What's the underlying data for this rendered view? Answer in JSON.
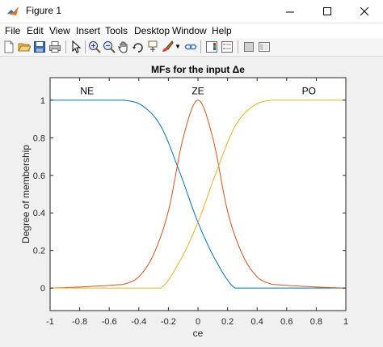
{
  "window": {
    "title": "Figure 1"
  },
  "menu": [
    "File",
    "Edit",
    "View",
    "Insert",
    "Tools",
    "Desktop",
    "Window",
    "Help"
  ],
  "toolbar": {
    "buttons": [
      "new-figure",
      "open-file",
      "save",
      "print",
      "edit-plot-arrow",
      "zoom-in",
      "zoom-out",
      "pan",
      "rotate-3d",
      "data-cursor",
      "brush",
      "link-plot",
      "insert-colorbar",
      "insert-legend",
      "hide-plot-tools",
      "show-plot-tools"
    ]
  },
  "chart_data": {
    "type": "line",
    "title": "MFs for the input Δe",
    "xlabel": "ce",
    "ylabel": "Degree of membership",
    "xlim": [
      -1,
      1
    ],
    "ylim": [
      -0.12,
      1.12
    ],
    "xticks": [
      "-1",
      "-0.8",
      "-0.6",
      "-0.4",
      "-0.2",
      "0",
      "0.2",
      "0.4",
      "0.6",
      "0.8",
      "1"
    ],
    "yticks": [
      "0",
      "0.2",
      "0.4",
      "0.6",
      "0.8",
      "1"
    ],
    "grid": false,
    "series": [
      {
        "name": "NE",
        "color": "#0072bd",
        "x": [
          -1,
          -0.5,
          -0.375,
          -0.25,
          -0.125,
          0,
          0.125,
          0.25,
          1
        ],
        "y": [
          1,
          1,
          0.97,
          0.86,
          0.62,
          0.35,
          0.14,
          0,
          0
        ]
      },
      {
        "name": "ZE",
        "color": "#d95319",
        "x": [
          -1,
          -0.5,
          -0.4,
          -0.3,
          -0.2,
          -0.1,
          0,
          0.1,
          0.2,
          0.3,
          0.4,
          0.5,
          1
        ],
        "y": [
          0,
          0.02,
          0.06,
          0.18,
          0.41,
          0.8,
          1,
          0.8,
          0.41,
          0.18,
          0.06,
          0.02,
          0
        ]
      },
      {
        "name": "PO",
        "color": "#edb120",
        "x": [
          -1,
          -0.25,
          -0.125,
          0,
          0.125,
          0.25,
          0.375,
          0.5,
          1
        ],
        "y": [
          0,
          0,
          0.14,
          0.35,
          0.62,
          0.86,
          0.97,
          1,
          1
        ]
      }
    ],
    "annotations": [
      {
        "text": "NE",
        "x": -0.75,
        "y": 1.05
      },
      {
        "text": "ZE",
        "x": 0,
        "y": 1.05
      },
      {
        "text": "PO",
        "x": 0.75,
        "y": 1.05
      }
    ]
  }
}
